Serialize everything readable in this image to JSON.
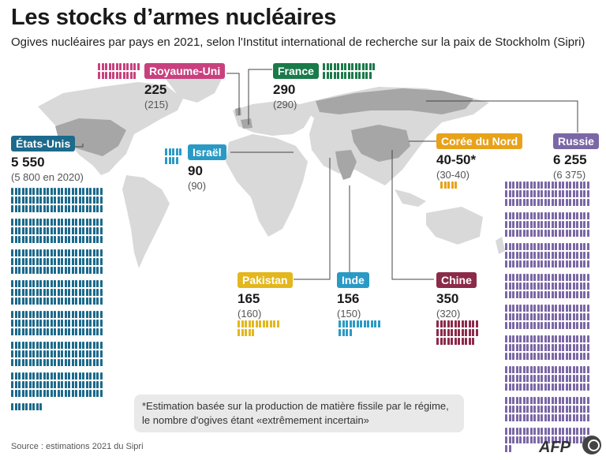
{
  "header": {
    "title": "Les stocks d’armes nucléaires",
    "subtitle": "Ogives nucléaires par pays en 2021, selon l'Institut international de recherche sur la paix de Stockholm (Sipri)"
  },
  "chart_data": {
    "type": "table",
    "year": 2021,
    "unit": "ogives nucléaires",
    "countries": [
      {
        "name": "États-Unis",
        "label": "5 550",
        "value": 5550,
        "prev_label": "(5 800 en 2020)",
        "prev_value": 5800,
        "color": "#1c6a8c"
      },
      {
        "name": "Royaume-Uni",
        "label": "225",
        "value": 225,
        "prev_label": "(215)",
        "prev_value": 215,
        "color": "#c8417e"
      },
      {
        "name": "France",
        "label": "290",
        "value": 290,
        "prev_label": "(290)",
        "prev_value": 290,
        "color": "#1b7a4a"
      },
      {
        "name": "Israël",
        "label": "90",
        "value": 90,
        "prev_label": "(90)",
        "prev_value": 90,
        "color": "#2a9ac5"
      },
      {
        "name": "Corée du Nord",
        "label": "40-50*",
        "value": 50,
        "prev_label": "(30-40)",
        "prev_value": 40,
        "color": "#e8a21a"
      },
      {
        "name": "Russie",
        "label": "6 255",
        "value": 6255,
        "prev_label": "(6 375)",
        "prev_value": 6375,
        "color": "#7b67a6"
      },
      {
        "name": "Pakistan",
        "label": "165",
        "value": 165,
        "prev_label": "(160)",
        "prev_value": 160,
        "color": "#e3b71d"
      },
      {
        "name": "Inde",
        "label": "156",
        "value": 156,
        "prev_label": "(150)",
        "prev_value": 150,
        "color": "#2a9ac5"
      },
      {
        "name": "Chine",
        "label": "350",
        "value": 350,
        "prev_label": "(320)",
        "prev_value": 320,
        "color": "#8c2a4a"
      }
    ]
  },
  "note": {
    "text_line1": "*Estimation basée sur la production de matière fissile par le régime,",
    "text_line2": "le nombre d'ogives étant «extrêmement incertain»"
  },
  "footer": {
    "source": "Source : estimations 2021 du Sipri",
    "logo": "AFP"
  },
  "colors": {
    "map_land": "#d9d9d9",
    "highlight_land": "#a6a6a6",
    "leader_line": "#444444"
  }
}
